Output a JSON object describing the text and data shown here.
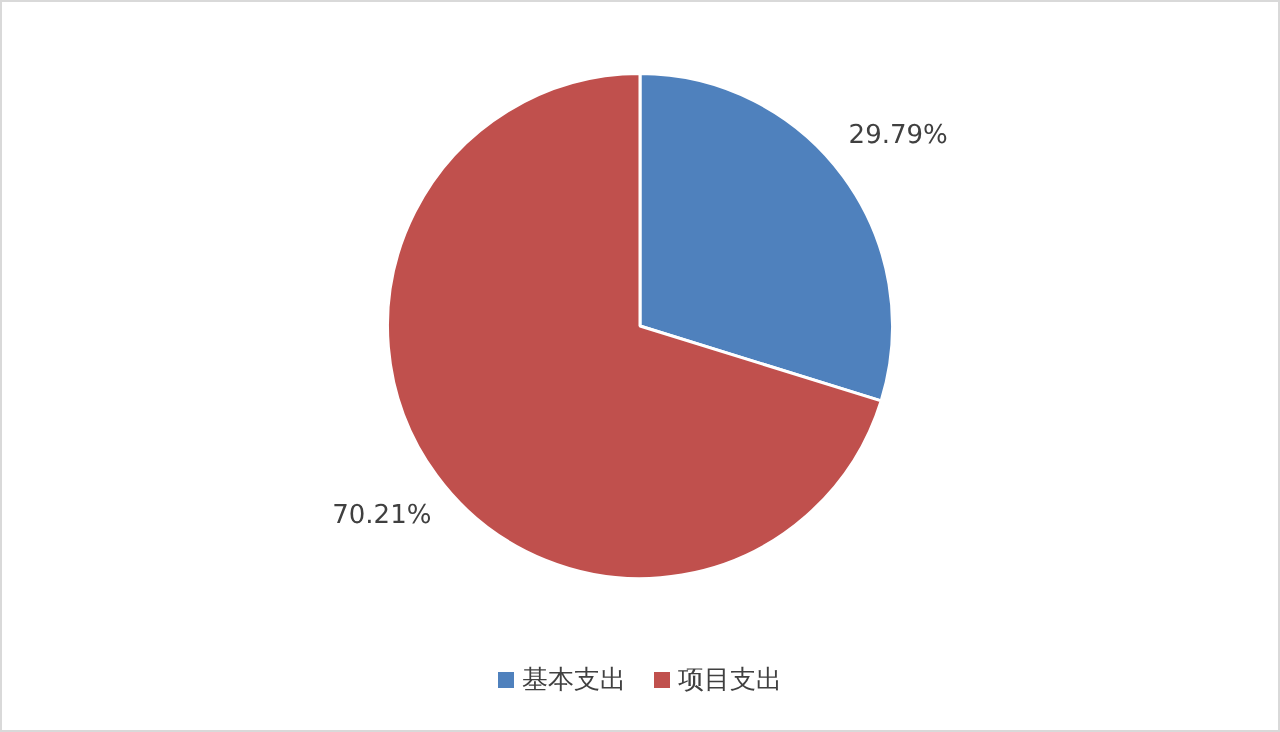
{
  "chart_data": {
    "type": "pie",
    "categories": [
      "基本支出",
      "项目支出"
    ],
    "values": [
      29.79,
      70.21
    ],
    "colors": [
      "#4f81bd",
      "#c0504d"
    ],
    "value_labels": [
      "29.79%",
      "70.21%"
    ],
    "legend": "bottom"
  }
}
